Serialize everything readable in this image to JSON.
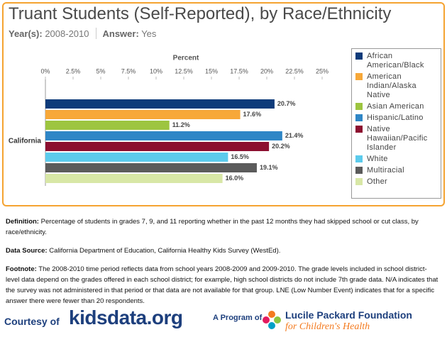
{
  "chart_data": {
    "type": "bar",
    "orientation": "horizontal",
    "title": "Truant Students (Self-Reported), by Race/Ethnicity",
    "filters": [
      {
        "label": "Year(s):",
        "value": "2008-2010"
      },
      {
        "label": "Answer:",
        "value": "Yes"
      }
    ],
    "x_label": "Percent",
    "categories": [
      "California"
    ],
    "xlim": [
      0,
      25
    ],
    "xticks": [
      {
        "value": 0,
        "label": "0%"
      },
      {
        "value": 2.5,
        "label": "2.5%"
      },
      {
        "value": 5,
        "label": "5%"
      },
      {
        "value": 7.5,
        "label": "7.5%"
      },
      {
        "value": 10,
        "label": "10%"
      },
      {
        "value": 12.5,
        "label": "12.5%"
      },
      {
        "value": 15,
        "label": "15%"
      },
      {
        "value": 17.5,
        "label": "17.5%"
      },
      {
        "value": 20,
        "label": "20%"
      },
      {
        "value": 22.5,
        "label": "22.5%"
      },
      {
        "value": 25,
        "label": "25%"
      }
    ],
    "grid": false,
    "legend": "right",
    "series": [
      {
        "name": "African American/Black",
        "color": "#0e3b7a",
        "values": [
          20.7
        ],
        "value_labels": [
          "20.7%"
        ]
      },
      {
        "name": "American Indian/Alaska Native",
        "color": "#f7a839",
        "values": [
          17.6
        ],
        "value_labels": [
          "17.6%"
        ]
      },
      {
        "name": "Asian American",
        "color": "#9dc540",
        "values": [
          11.2
        ],
        "value_labels": [
          "11.2%"
        ]
      },
      {
        "name": "Hispanic/Latino",
        "color": "#2f86c6",
        "values": [
          21.4
        ],
        "value_labels": [
          "21.4%"
        ]
      },
      {
        "name": "Native Hawaiian/Pacific Islander",
        "color": "#8c0f30",
        "values": [
          20.2
        ],
        "value_labels": [
          "20.2%"
        ]
      },
      {
        "name": "White",
        "color": "#5ccbec",
        "values": [
          16.5
        ],
        "value_labels": [
          "16.5%"
        ]
      },
      {
        "name": "Multiracial",
        "color": "#5b5b5b",
        "values": [
          19.1
        ],
        "value_labels": [
          "19.1%"
        ]
      },
      {
        "name": "Other",
        "color": "#d8e7a6",
        "values": [
          16.0
        ],
        "value_labels": [
          "16.0%"
        ]
      }
    ]
  },
  "notes": [
    {
      "label": "Definition:",
      "text": "Percentage of students in grades 7, 9, and 11 reporting whether in the past 12 months they had skipped school or cut class, by race/ethnicity."
    },
    {
      "label": "Data Source:",
      "text": "California Department of Education, California Healthy Kids Survey (WestEd)."
    },
    {
      "label": "Footnote:",
      "text": "The 2008-2010 time period reflects data from school years 2008-2009 and 2009-2010. The grade levels included in school district-level data depend on the grades offered in each school district; for example, high school districts do not include 7th grade data. N/A indicates that the survey was not administered in that period or that data are not available for that group. LNE (Low Number Event) indicates that for a specific answer there were fewer than 20 respondents."
    }
  ],
  "footer": {
    "courtesy": "Courtesy of",
    "site": "kidsdata.org",
    "program": "A Program of",
    "org": "Lucile Packard Foundation",
    "org_sub": "for Children's Health"
  }
}
